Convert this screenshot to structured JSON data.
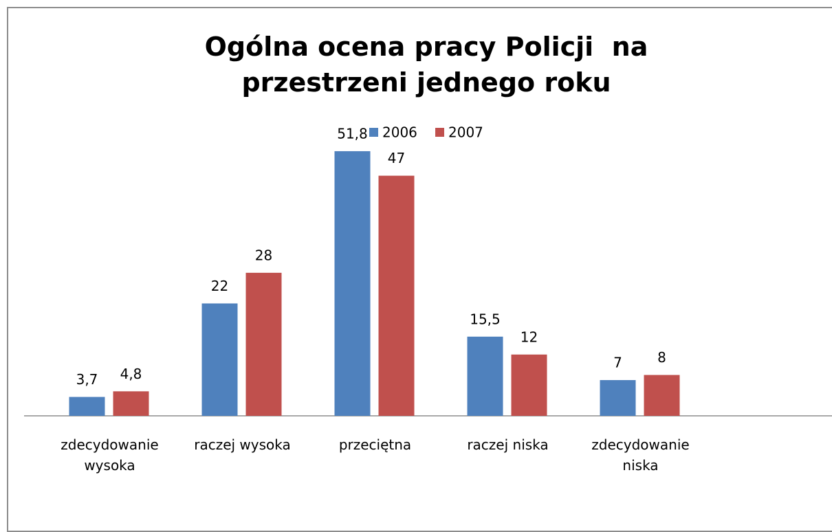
{
  "chart_data": {
    "type": "bar",
    "title": "Ogólna ocena pracy Policji  na przestrzeni jednego roku",
    "categories": [
      "zdecydowanie wysoka",
      "raczej wysoka",
      "przeciętna",
      "raczej niska",
      "zdecydowanie niska"
    ],
    "series": [
      {
        "name": "2006",
        "color": "#4f81bd",
        "values": [
          3.7,
          22,
          51.8,
          15.5,
          7
        ],
        "value_labels": [
          "3,7",
          "22",
          "51,8",
          "15,5",
          "7"
        ]
      },
      {
        "name": "2007",
        "color": "#c0504d",
        "values": [
          4.8,
          28,
          47,
          12,
          8
        ],
        "value_labels": [
          "4,8",
          "28",
          "47",
          "12",
          "8"
        ]
      }
    ],
    "ylim": [
      0,
      60
    ],
    "legend": "top"
  }
}
